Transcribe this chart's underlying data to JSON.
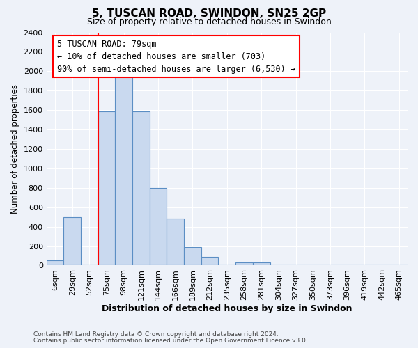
{
  "title": "5, TUSCAN ROAD, SWINDON, SN25 2GP",
  "subtitle": "Size of property relative to detached houses in Swindon",
  "xlabel": "Distribution of detached houses by size in Swindon",
  "ylabel": "Number of detached properties",
  "bar_labels": [
    "6sqm",
    "29sqm",
    "52sqm",
    "75sqm",
    "98sqm",
    "121sqm",
    "144sqm",
    "166sqm",
    "189sqm",
    "212sqm",
    "235sqm",
    "258sqm",
    "281sqm",
    "304sqm",
    "327sqm",
    "350sqm",
    "373sqm",
    "396sqm",
    "419sqm",
    "442sqm",
    "465sqm"
  ],
  "bar_values": [
    50,
    500,
    0,
    1590,
    1950,
    1590,
    800,
    480,
    190,
    90,
    0,
    35,
    35,
    0,
    0,
    0,
    0,
    0,
    0,
    0,
    0
  ],
  "bar_color": "#c9d9ef",
  "bar_edge_color": "#5b8ec4",
  "vline_color": "red",
  "vline_x_index": 3,
  "ylim": [
    0,
    2400
  ],
  "yticks": [
    0,
    200,
    400,
    600,
    800,
    1000,
    1200,
    1400,
    1600,
    1800,
    2000,
    2200,
    2400
  ],
  "annotation_title": "5 TUSCAN ROAD: 79sqm",
  "annotation_line1": "← 10% of detached houses are smaller (703)",
  "annotation_line2": "90% of semi-detached houses are larger (6,530) →",
  "annotation_box_color": "white",
  "annotation_box_edge_color": "red",
  "footer_line1": "Contains HM Land Registry data © Crown copyright and database right 2024.",
  "footer_line2": "Contains public sector information licensed under the Open Government Licence v3.0.",
  "background_color": "#eef2f9",
  "plot_background_color": "#eef2f9",
  "grid_color": "#ffffff",
  "title_fontsize": 11,
  "subtitle_fontsize": 9,
  "xlabel_fontsize": 9,
  "ylabel_fontsize": 8.5,
  "tick_fontsize": 8,
  "annotation_fontsize": 8.5,
  "footer_fontsize": 6.5
}
